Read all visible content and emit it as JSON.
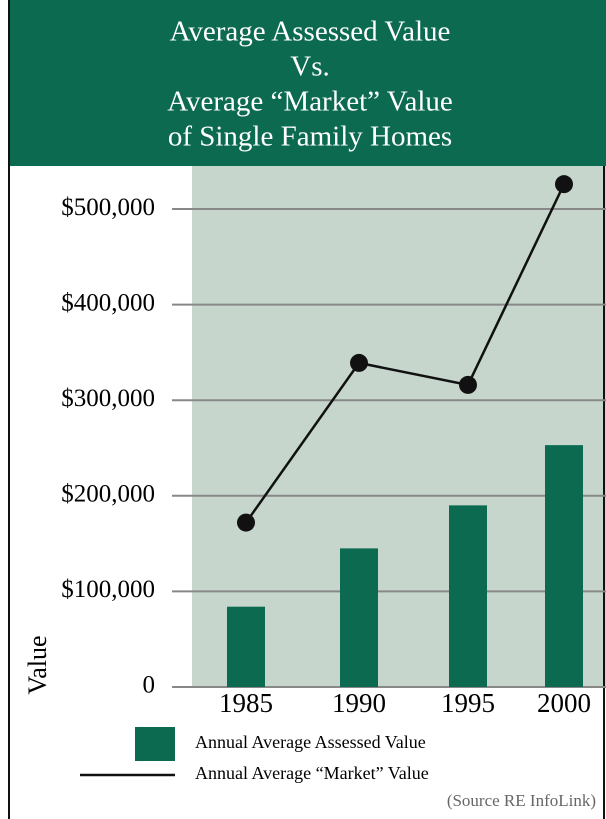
{
  "chart_data": {
    "type": "bar",
    "title": [
      "Average Assessed Value",
      "Vs.",
      "Average “Market” Value",
      "of Single Family Homes"
    ],
    "y_axis_label": "Value",
    "categories": [
      "1985",
      "1990",
      "1995",
      "2000"
    ],
    "series": [
      {
        "name": "Annual Average Assessed Value",
        "type": "bar",
        "color": "#0b6a50",
        "values": [
          84000,
          145000,
          190000,
          253000
        ]
      },
      {
        "name": "Annual Average “Market” Value",
        "type": "line",
        "color": "#111111",
        "values": [
          172000,
          339000,
          316000,
          526000
        ]
      }
    ],
    "ylim": [
      0,
      545000
    ],
    "yticks": [
      0,
      {
        "value": 100000,
        "label": "$100,000"
      },
      {
        "value": 200000,
        "label": "$200,000"
      },
      {
        "value": 300000,
        "label": "$300,000"
      },
      {
        "value": 400000,
        "label": "$400,000"
      },
      {
        "value": 500000,
        "label": "$500,000"
      }
    ],
    "grid": true,
    "source": "(Source RE InfoLink)"
  }
}
